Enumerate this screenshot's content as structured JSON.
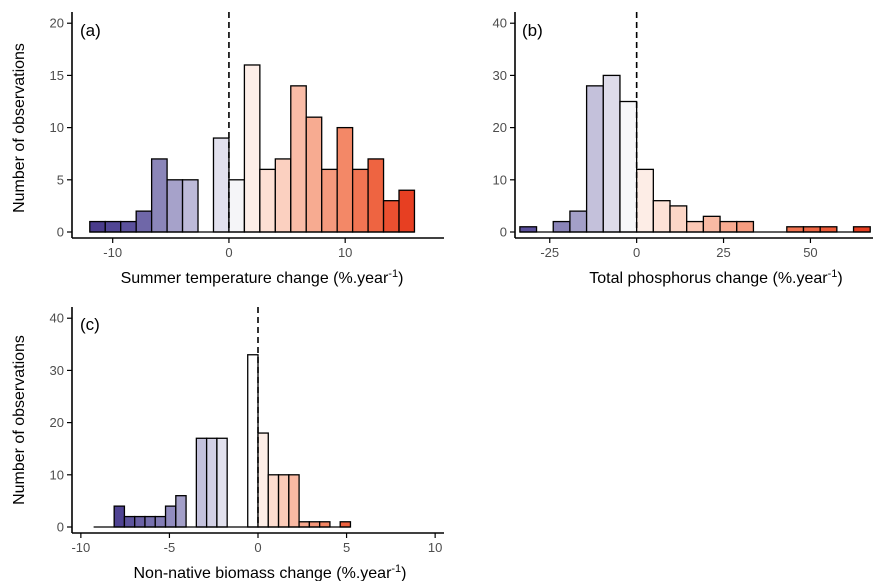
{
  "chart_data": [
    {
      "type": "bar",
      "panel": "(a)",
      "xlabel": "Summer temperature change (%.year",
      "xlabel_sup": "-1",
      "xlabel_close": ")",
      "ylabel": "Number of observations",
      "xlim": [
        -13.5,
        18.5
      ],
      "ylim": [
        0,
        20.5
      ],
      "xticks": [
        -10,
        0,
        10
      ],
      "xtick_labels": [
        "-10",
        "0",
        "10"
      ],
      "yticks": [
        0,
        5,
        10,
        15,
        20
      ],
      "ytick_labels": [
        "0",
        "5",
        "10",
        "15",
        "20"
      ],
      "bin_width": 1.33,
      "zero_line": 0,
      "bins": [
        {
          "x": -11.97,
          "count": 1,
          "color": "#4a3c8c"
        },
        {
          "x": -10.64,
          "count": 1,
          "color": "#514695"
        },
        {
          "x": -9.31,
          "count": 1,
          "color": "#5b519c"
        },
        {
          "x": -7.98,
          "count": 2,
          "color": "#6f67a8"
        },
        {
          "x": -6.65,
          "count": 7,
          "color": "#8b86b9"
        },
        {
          "x": -5.32,
          "count": 5,
          "color": "#a6a2ca"
        },
        {
          "x": -3.99,
          "count": 5,
          "color": "#bdbad8"
        },
        {
          "x": -2.66,
          "count": 0,
          "color": "#cfcde3"
        },
        {
          "x": -1.33,
          "count": 9,
          "color": "#e2e1ee"
        },
        {
          "x": 0.0,
          "count": 5,
          "color": "#f5f5f8"
        },
        {
          "x": 1.33,
          "count": 16,
          "color": "#fdeee8"
        },
        {
          "x": 2.66,
          "count": 6,
          "color": "#fde0d4"
        },
        {
          "x": 3.99,
          "count": 7,
          "color": "#fbd0c0"
        },
        {
          "x": 5.32,
          "count": 14,
          "color": "#f9bca7"
        },
        {
          "x": 6.65,
          "count": 11,
          "color": "#f7ab91"
        },
        {
          "x": 7.98,
          "count": 6,
          "color": "#f59a7d"
        },
        {
          "x": 9.31,
          "count": 10,
          "color": "#f38867"
        },
        {
          "x": 10.64,
          "count": 6,
          "color": "#f17553"
        },
        {
          "x": 11.97,
          "count": 7,
          "color": "#ee6441"
        },
        {
          "x": 13.3,
          "count": 3,
          "color": "#ec5030"
        },
        {
          "x": 14.63,
          "count": 4,
          "color": "#e73f22"
        }
      ]
    },
    {
      "type": "bar",
      "panel": "(b)",
      "xlabel": "Total phosphorus change (%.year",
      "xlabel_sup": "-1",
      "xlabel_close": ")",
      "ylabel": "",
      "xlim": [
        -35,
        68
      ],
      "ylim": [
        0,
        41
      ],
      "xticks": [
        -25,
        0,
        25,
        50
      ],
      "xtick_labels": [
        "-25",
        "0",
        "25",
        "50"
      ],
      "yticks": [
        0,
        10,
        20,
        30,
        40
      ],
      "ytick_labels": [
        "0",
        "10",
        "20",
        "30",
        "40"
      ],
      "bin_width": 4.8,
      "zero_line": 0,
      "bins": [
        {
          "x": -33.6,
          "count": 1,
          "color": "#5a4f9b"
        },
        {
          "x": -28.8,
          "count": 0,
          "color": "#6b62a6"
        },
        {
          "x": -24.0,
          "count": 2,
          "color": "#8a84b8"
        },
        {
          "x": -19.2,
          "count": 4,
          "color": "#a39fc8"
        },
        {
          "x": -14.4,
          "count": 28,
          "color": "#c4c1db"
        },
        {
          "x": -9.6,
          "count": 30,
          "color": "#dedcea"
        },
        {
          "x": -4.8,
          "count": 25,
          "color": "#f7f7f9"
        },
        {
          "x": 0.0,
          "count": 12,
          "color": "#fdede6"
        },
        {
          "x": 4.8,
          "count": 6,
          "color": "#fde2d7"
        },
        {
          "x": 9.6,
          "count": 5,
          "color": "#fcd6c6"
        },
        {
          "x": 14.4,
          "count": 2,
          "color": "#fbc8b5"
        },
        {
          "x": 19.2,
          "count": 3,
          "color": "#f9baa4"
        },
        {
          "x": 24.0,
          "count": 2,
          "color": "#f8ab91"
        },
        {
          "x": 28.8,
          "count": 2,
          "color": "#f69d80"
        },
        {
          "x": 33.6,
          "count": 0,
          "color": "#f48f70"
        },
        {
          "x": 38.4,
          "count": 0,
          "color": "#f28060"
        },
        {
          "x": 43.2,
          "count": 1,
          "color": "#f07351"
        },
        {
          "x": 48.0,
          "count": 1,
          "color": "#ee6644"
        },
        {
          "x": 52.8,
          "count": 1,
          "color": "#ec5a38"
        },
        {
          "x": 57.6,
          "count": 0,
          "color": "#ea4c2c"
        },
        {
          "x": 62.4,
          "count": 1,
          "color": "#e63e21"
        }
      ]
    },
    {
      "type": "bar",
      "panel": "(c)",
      "xlabel": "Non-native biomass change (%.year",
      "xlabel_sup": "-1",
      "xlabel_close": ")",
      "ylabel": "Number of observations",
      "xlim": [
        -10.5,
        10.5
      ],
      "ylim": [
        0,
        41
      ],
      "xticks": [
        -10,
        -5,
        0,
        5,
        10
      ],
      "xtick_labels": [
        "-10",
        "-5",
        "0",
        "5",
        "10"
      ],
      "yticks": [
        0,
        10,
        20,
        30,
        40
      ],
      "ytick_labels": [
        "0",
        "10",
        "20",
        "30",
        "40"
      ],
      "bin_width": 0.58,
      "zero_line": 0,
      "bins": [
        {
          "x": -9.28,
          "count": 0,
          "color": "#4a3c8c"
        },
        {
          "x": -8.7,
          "count": 0,
          "color": "#4a3c8c"
        },
        {
          "x": -8.12,
          "count": 4,
          "color": "#4f4392"
        },
        {
          "x": -7.54,
          "count": 2,
          "color": "#5d549d"
        },
        {
          "x": -6.96,
          "count": 2,
          "color": "#6a61a5"
        },
        {
          "x": -6.38,
          "count": 2,
          "color": "#7670ae"
        },
        {
          "x": -5.8,
          "count": 2,
          "color": "#827cb5"
        },
        {
          "x": -5.22,
          "count": 4,
          "color": "#918cbf"
        },
        {
          "x": -4.64,
          "count": 6,
          "color": "#a39fc8"
        },
        {
          "x": -4.06,
          "count": 0,
          "color": "#b3b0d2"
        },
        {
          "x": -3.48,
          "count": 17,
          "color": "#c3c1dc"
        },
        {
          "x": -2.9,
          "count": 17,
          "color": "#d2d0e5"
        },
        {
          "x": -2.32,
          "count": 17,
          "color": "#e2e1ee"
        },
        {
          "x": -1.74,
          "count": 0,
          "color": "#eeedf4"
        },
        {
          "x": -0.58,
          "count": 33,
          "color": "#ffffff"
        },
        {
          "x": 0.0,
          "count": 18,
          "color": "#fdeee7"
        },
        {
          "x": 0.58,
          "count": 10,
          "color": "#fcdccf"
        },
        {
          "x": 1.16,
          "count": 10,
          "color": "#fbcbb8"
        },
        {
          "x": 1.74,
          "count": 10,
          "color": "#f9b9a3"
        },
        {
          "x": 2.32,
          "count": 1,
          "color": "#f7a88e"
        },
        {
          "x": 2.9,
          "count": 1,
          "color": "#f5977a"
        },
        {
          "x": 3.48,
          "count": 1,
          "color": "#f38664"
        },
        {
          "x": 4.06,
          "count": 0,
          "color": "#f17451"
        },
        {
          "x": 4.64,
          "count": 1,
          "color": "#ee623f"
        }
      ]
    }
  ]
}
